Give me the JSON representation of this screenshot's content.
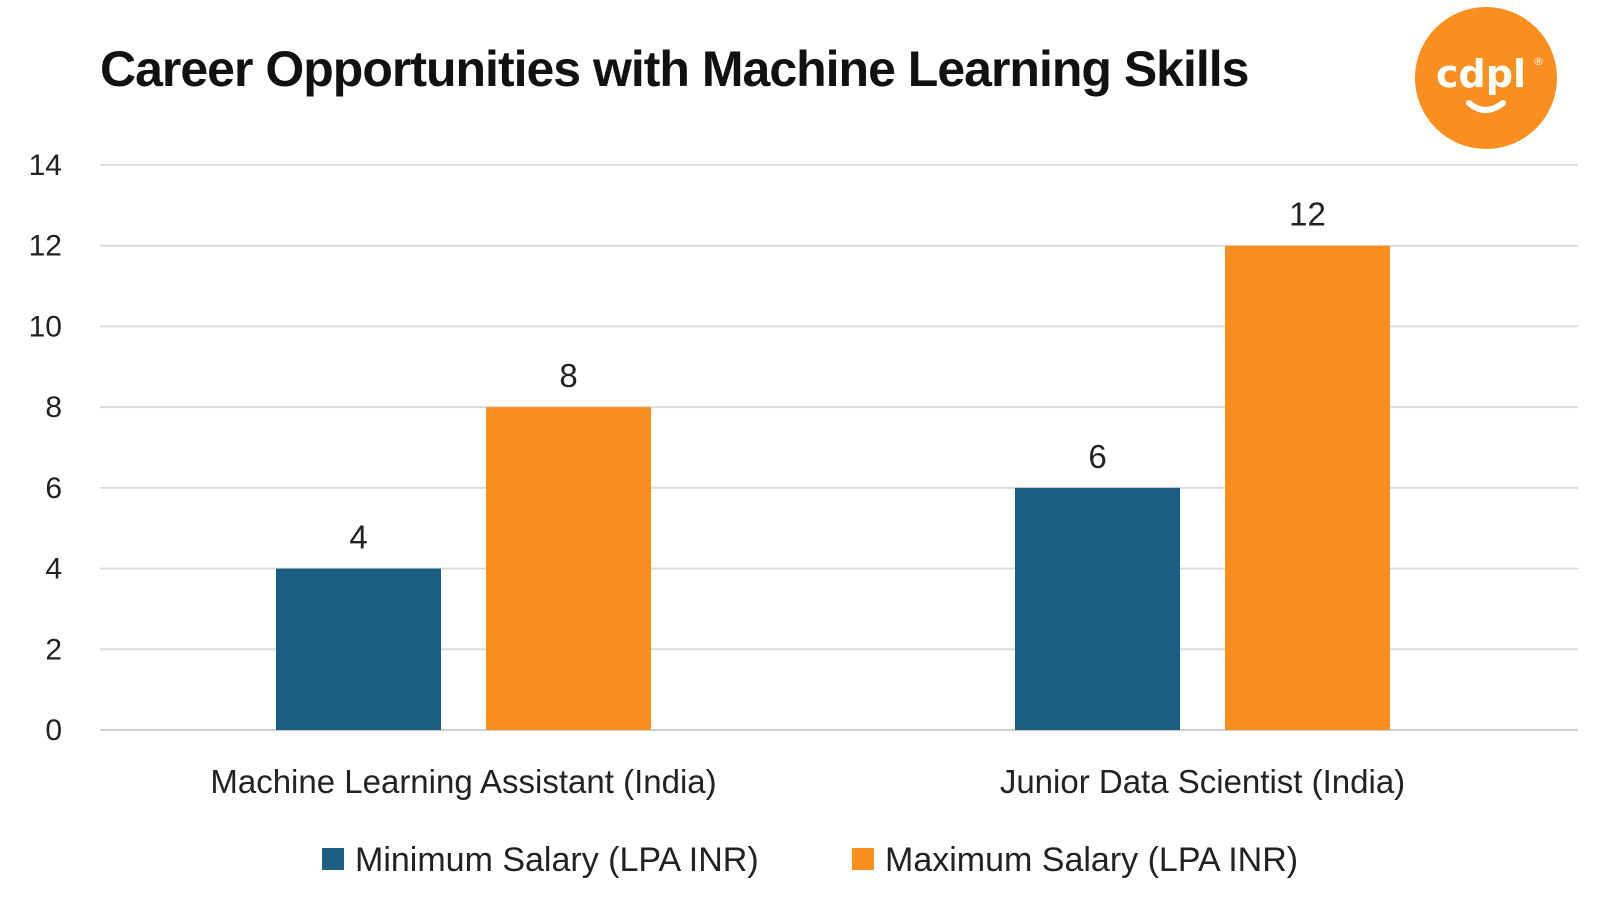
{
  "chart_data": {
    "type": "bar",
    "title": "Career Opportunities with Machine Learning Skills",
    "categories": [
      "Machine Learning Assistant (India)",
      "Junior Data Scientist (India)"
    ],
    "series": [
      {
        "name": "Minimum Salary (LPA INR)",
        "values": [
          4,
          6
        ],
        "color": "#1b5e82"
      },
      {
        "name": "Maximum Salary (LPA INR)",
        "values": [
          8,
          12
        ],
        "color": "#f98f1e"
      }
    ],
    "ylim": [
      0,
      14
    ],
    "yticks": [
      0,
      2,
      4,
      6,
      8,
      10,
      12,
      14
    ],
    "grid": true,
    "legend_position": "bottom",
    "data_labels": true,
    "xlabel": "",
    "ylabel": ""
  },
  "logo": {
    "text": "cdpl",
    "mark": "®",
    "color": "#f98f1e"
  }
}
